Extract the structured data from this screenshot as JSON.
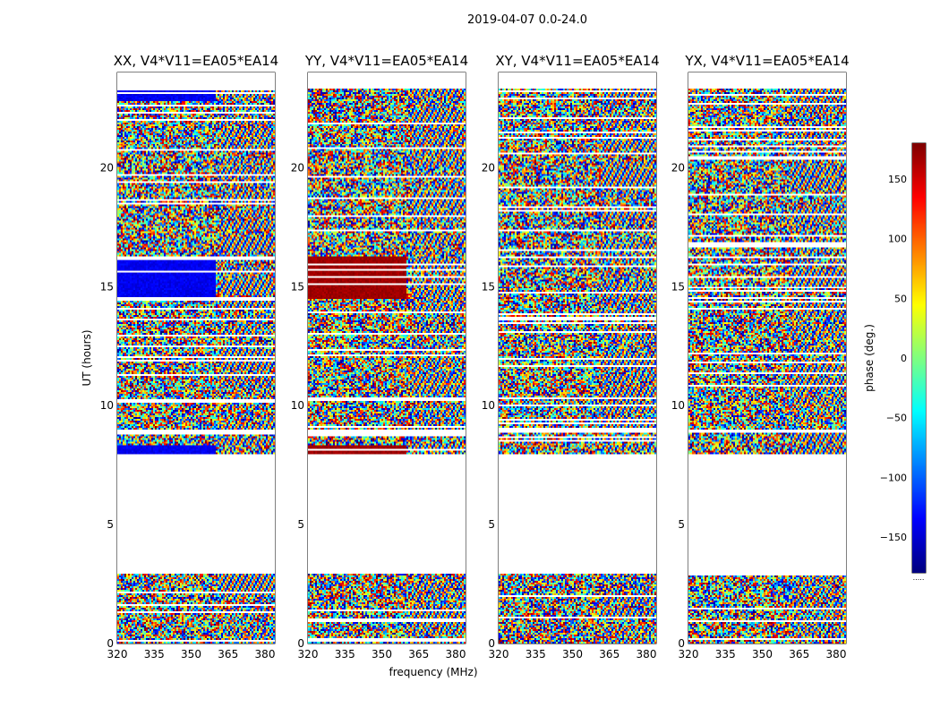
{
  "figure": {
    "suptitle": "2019-04-07 0.0-24.0"
  },
  "chart_data": {
    "type": "heatmap",
    "colormap": "jet",
    "x_label": "frequency (MHz)",
    "y_label": "UT (hours)",
    "x_range": [
      320,
      384
    ],
    "y_range": [
      0,
      24
    ],
    "x_ticks": [
      "320",
      "335",
      "350",
      "365",
      "380"
    ],
    "x_tick_values": [
      320,
      335,
      350,
      365,
      380
    ],
    "y_ticks": [
      "0",
      "5",
      "10",
      "15",
      "20"
    ],
    "y_tick_values": [
      0,
      5,
      10,
      15,
      20
    ],
    "colorbar": {
      "label": "phase (deg.)",
      "range": [
        -180,
        180
      ],
      "ticks": [
        "150",
        "100",
        "50",
        "0",
        "−50",
        "−100",
        "−150"
      ],
      "tick_values": [
        150,
        100,
        50,
        0,
        -50,
        -100,
        -150
      ],
      "footnote": "....."
    },
    "panels": [
      {
        "title": "XX, V4*V11=EA05*EA14",
        "pol": "XX"
      },
      {
        "title": "YY, V4*V11=EA05*EA14",
        "pol": "YY"
      },
      {
        "title": "XY, V4*V11=EA05*EA14",
        "pol": "XY"
      },
      {
        "title": "YX, V4*V11=EA05*EA14",
        "pol": "YX"
      }
    ],
    "data_blocks_ut": [
      [
        0.0,
        2.95
      ],
      [
        7.98,
        8.85
      ],
      [
        9.0,
        23.35
      ]
    ],
    "notes": "Phase (deg.) vs frequency and UT for baseline V4*V11=EA05*EA14; flagged data shown blank (roughly 2.95-8.0 UT)."
  }
}
